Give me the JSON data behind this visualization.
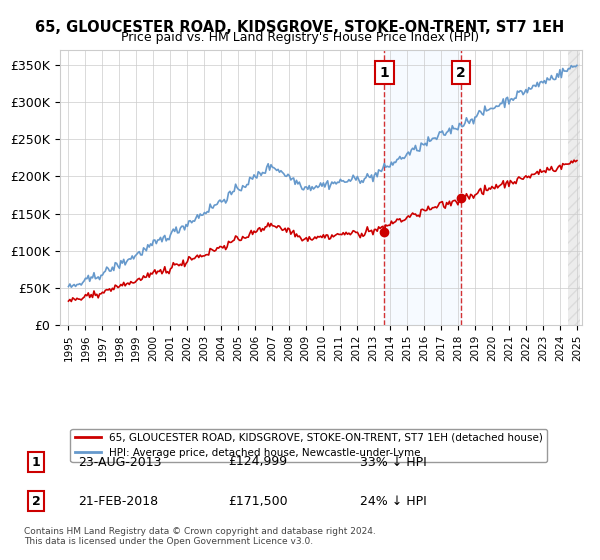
{
  "title": "65, GLOUCESTER ROAD, KIDSGROVE, STOKE-ON-TRENT, ST7 1EH",
  "subtitle": "Price paid vs. HM Land Registry's House Price Index (HPI)",
  "ylabel": "",
  "ylim": [
    0,
    370000
  ],
  "yticks": [
    0,
    50000,
    100000,
    150000,
    200000,
    250000,
    300000,
    350000
  ],
  "ytick_labels": [
    "£0",
    "£50K",
    "£100K",
    "£150K",
    "£200K",
    "£250K",
    "£300K",
    "£350K"
  ],
  "hpi_color": "#6699cc",
  "price_color": "#cc0000",
  "marker1_date_idx": 18.65,
  "marker1_price": 124999,
  "marker1_label": "1",
  "marker1_date_str": "23-AUG-2013",
  "marker1_price_str": "£124,999",
  "marker1_pct": "33% ↓ HPI",
  "marker2_date_idx": 23.12,
  "marker2_price": 171500,
  "marker2_label": "2",
  "marker2_date_str": "21-FEB-2018",
  "marker2_price_str": "£171,500",
  "marker2_pct": "24% ↓ HPI",
  "legend_line1": "65, GLOUCESTER ROAD, KIDSGROVE, STOKE-ON-TRENT, ST7 1EH (detached house)",
  "legend_line2": "HPI: Average price, detached house, Newcastle-under-Lyme",
  "copyright_text": "Contains HM Land Registry data © Crown copyright and database right 2024.\nThis data is licensed under the Open Government Licence v3.0.",
  "background_color": "#ffffff",
  "hatch_color": "#dddddd",
  "shade_color": "#ddeeff"
}
